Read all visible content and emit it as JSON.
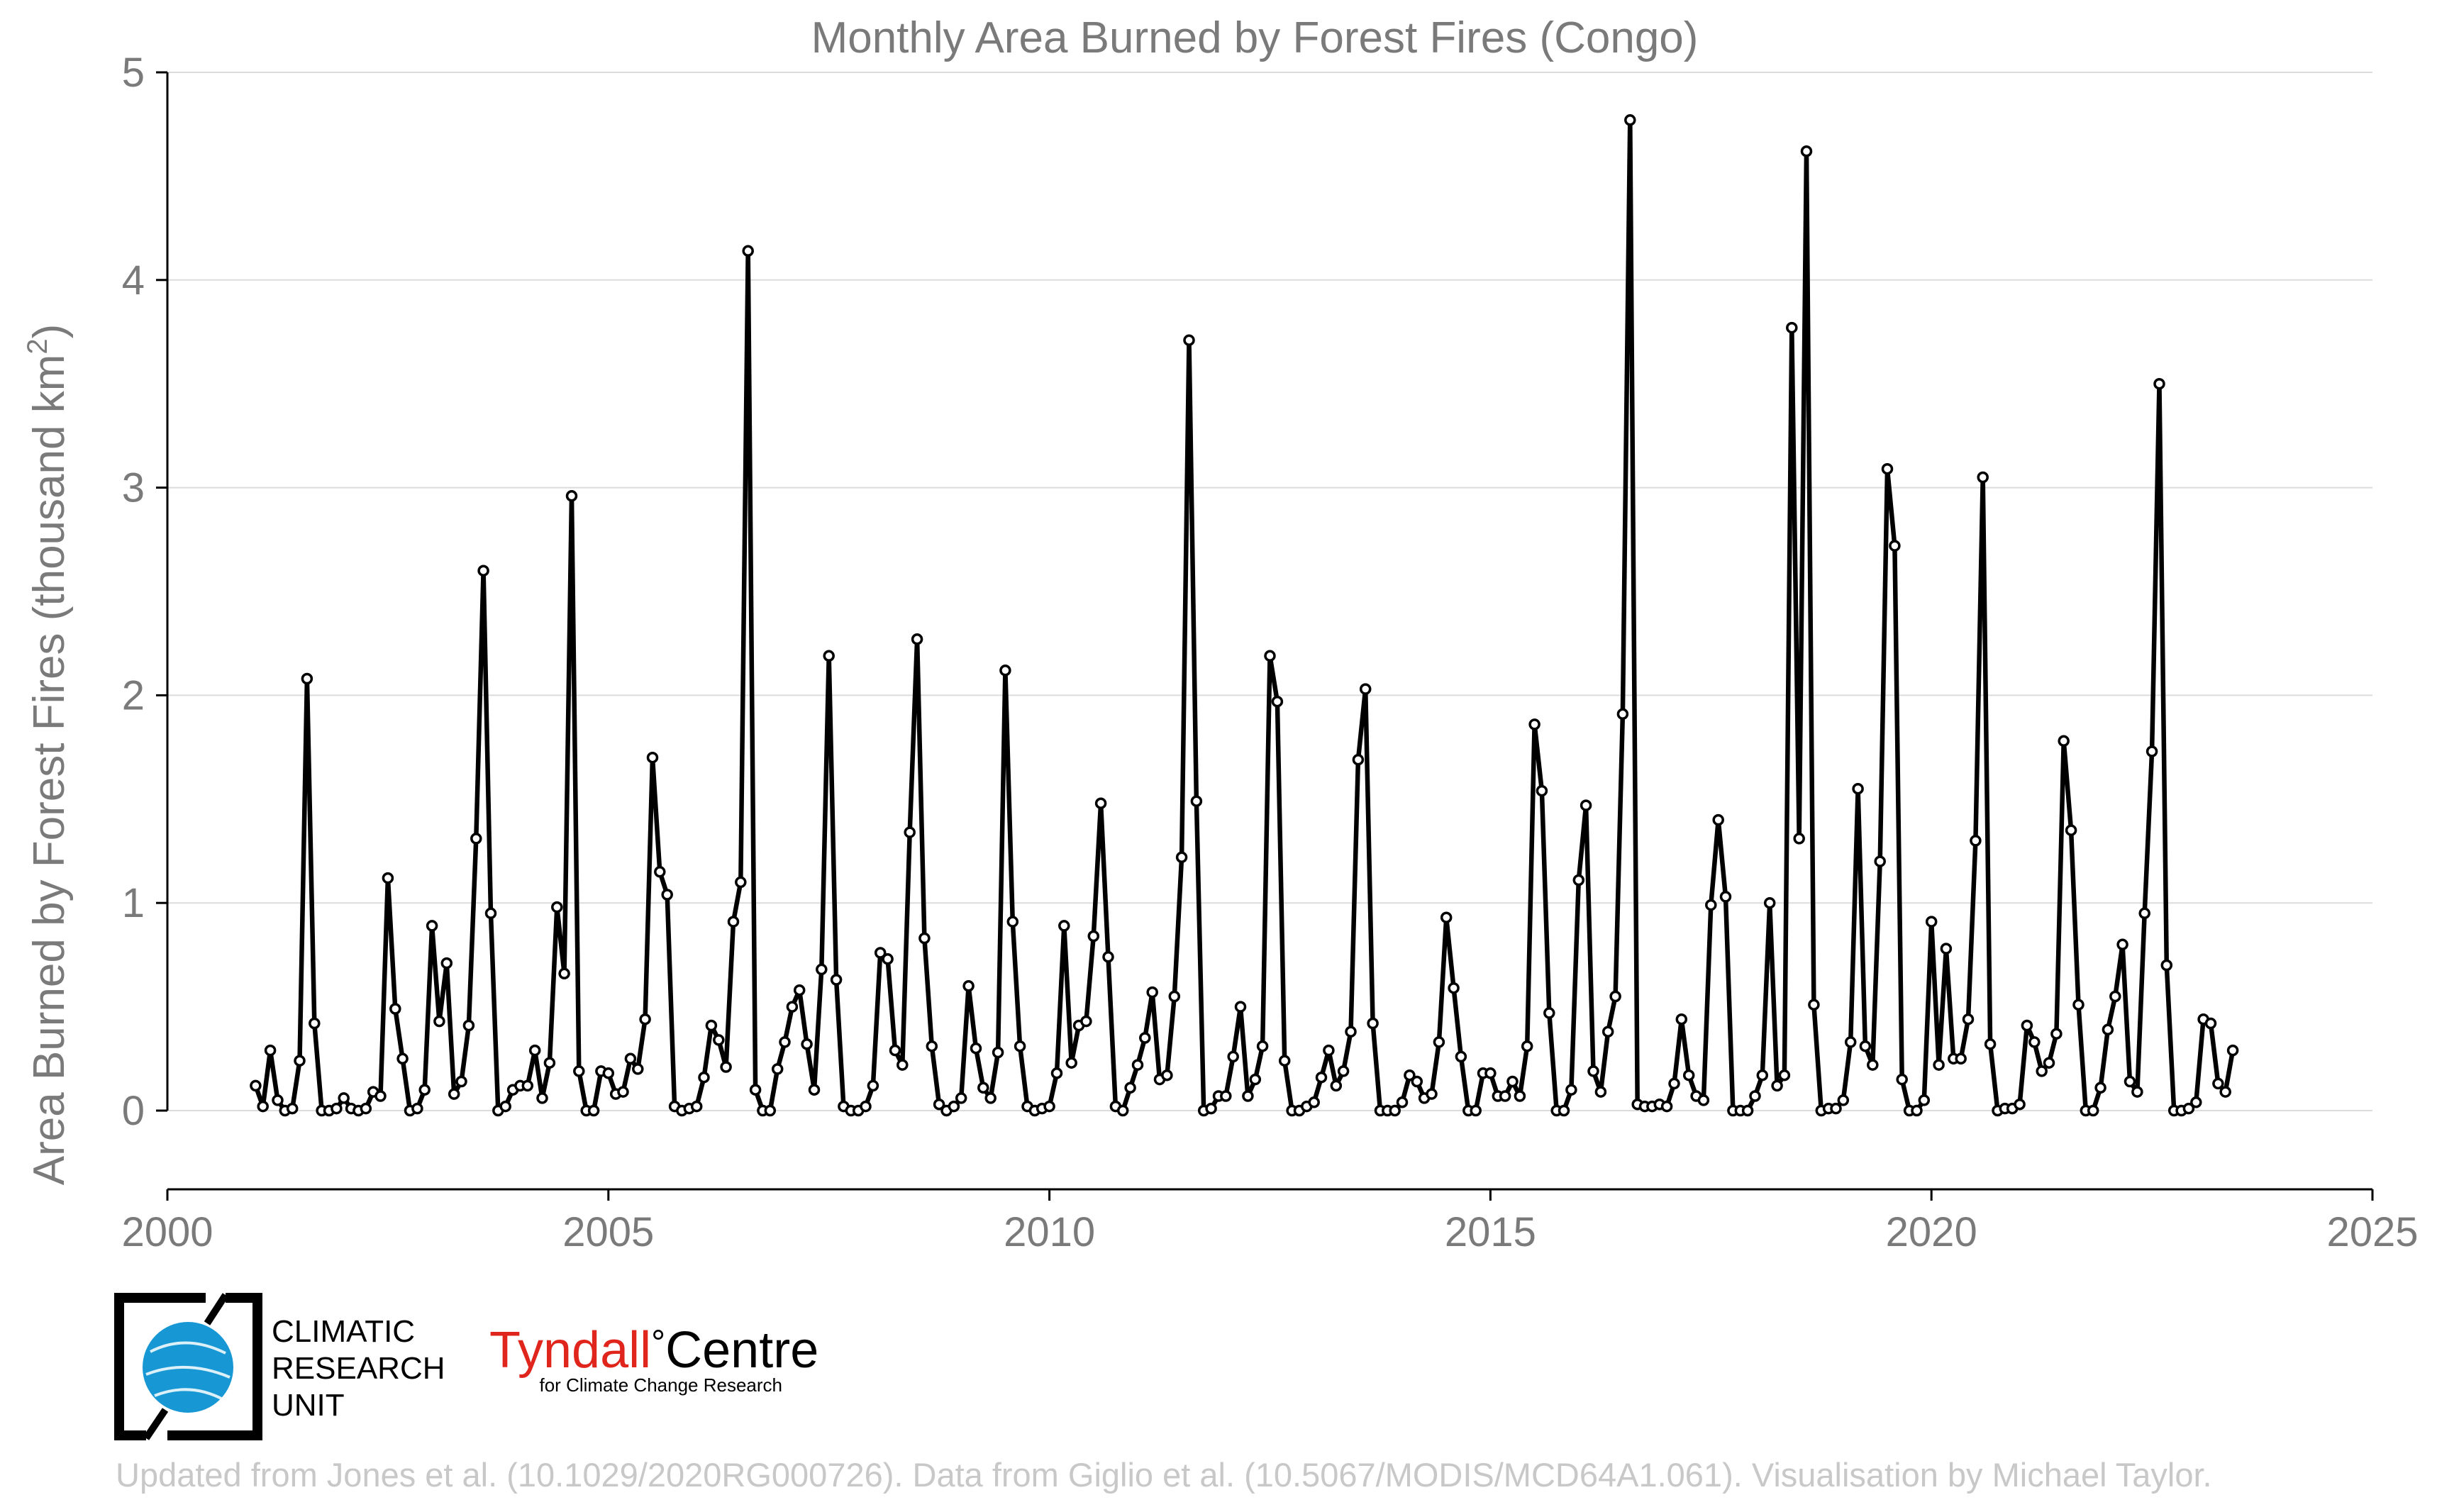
{
  "logos": {
    "cru": {
      "line1": "CLIMATIC",
      "line2": "RESEARCH",
      "line3": "UNIT"
    },
    "tyndall": {
      "word_red": "Tyndall",
      "degree": "°",
      "word_black": "Centre",
      "subtitle": "for Climate Change Research",
      "brand_color": "#e0261c"
    }
  },
  "credit": "Updated from Jones et al. (10.1029/2020RG000726). Data from Giglio et al. (10.5067/MODIS/MCD64A1.061). Visualisation by Michael Taylor.",
  "chart_data": {
    "type": "line",
    "title": "Monthly Area Burned by Forest Fires (Congo)",
    "ylabel_main": "Area Burned by Forest Fires (thousand km",
    "ylabel_sup": "2",
    "ylabel_close": ")",
    "xlabel": "",
    "xlim": [
      2000,
      2025
    ],
    "ylim": [
      0,
      5
    ],
    "xticks": [
      2000,
      2005,
      2010,
      2015,
      2020,
      2025
    ],
    "yticks": [
      0,
      1,
      2,
      3,
      4,
      5
    ],
    "grid": "horizontal",
    "legend": "none",
    "x_start": "2001-01",
    "x_step": "1 month",
    "series": [
      {
        "values": [
          0.12,
          0.02,
          0.29,
          0.05,
          0.0,
          0.01,
          0.24,
          2.08,
          0.42,
          0.0,
          0.0,
          0.01,
          0.06,
          0.01,
          0.0,
          0.01,
          0.09,
          0.07,
          1.12,
          0.49,
          0.25,
          0.0,
          0.01,
          0.1,
          0.89,
          0.43,
          0.71,
          0.08,
          0.14,
          0.41,
          1.31,
          2.6,
          0.95,
          0.0,
          0.02,
          0.1,
          0.12,
          0.12,
          0.29,
          0.06,
          0.23,
          0.98,
          0.66,
          2.96,
          0.19,
          0.0,
          0.0,
          0.19,
          0.18,
          0.08,
          0.09,
          0.25,
          0.2,
          0.44,
          1.7,
          1.15,
          1.04,
          0.02,
          0.0,
          0.01,
          0.02,
          0.16,
          0.41,
          0.34,
          0.21,
          0.91,
          1.1,
          4.14,
          0.1,
          0.0,
          0.0,
          0.2,
          0.33,
          0.5,
          0.58,
          0.32,
          0.1,
          0.68,
          2.19,
          0.63,
          0.02,
          0.0,
          0.0,
          0.02,
          0.12,
          0.76,
          0.73,
          0.29,
          0.22,
          1.34,
          2.27,
          0.83,
          0.31,
          0.03,
          0.0,
          0.02,
          0.06,
          0.6,
          0.3,
          0.11,
          0.06,
          0.28,
          2.12,
          0.91,
          0.31,
          0.02,
          0.0,
          0.01,
          0.02,
          0.18,
          0.89,
          0.23,
          0.41,
          0.43,
          0.84,
          1.48,
          0.74,
          0.02,
          0.0,
          0.11,
          0.22,
          0.35,
          0.57,
          0.15,
          0.17,
          0.55,
          1.22,
          3.71,
          1.49,
          0.0,
          0.01,
          0.07,
          0.07,
          0.26,
          0.5,
          0.07,
          0.15,
          0.31,
          2.19,
          1.97,
          0.24,
          0.0,
          0.0,
          0.02,
          0.04,
          0.16,
          0.29,
          0.12,
          0.19,
          0.38,
          1.69,
          2.03,
          0.42,
          0.0,
          0.0,
          0.0,
          0.04,
          0.17,
          0.14,
          0.06,
          0.08,
          0.33,
          0.93,
          0.59,
          0.26,
          0.0,
          0.0,
          0.18,
          0.18,
          0.07,
          0.07,
          0.14,
          0.07,
          0.31,
          1.86,
          1.54,
          0.47,
          0.0,
          0.0,
          0.1,
          1.11,
          1.47,
          0.19,
          0.09,
          0.38,
          0.55,
          1.91,
          4.77,
          0.03,
          0.02,
          0.02,
          0.03,
          0.02,
          0.13,
          0.44,
          0.17,
          0.07,
          0.05,
          0.99,
          1.4,
          1.03,
          0.0,
          0.0,
          0.0,
          0.07,
          0.17,
          1.0,
          0.12,
          0.17,
          3.77,
          1.31,
          4.62,
          0.51,
          0.0,
          0.01,
          0.01,
          0.05,
          0.33,
          1.55,
          0.31,
          0.22,
          1.2,
          3.09,
          2.72,
          0.15,
          0.0,
          0.0,
          0.05,
          0.91,
          0.22,
          0.78,
          0.25,
          0.25,
          0.44,
          1.3,
          3.05,
          0.32,
          0.0,
          0.01,
          0.01,
          0.03,
          0.41,
          0.33,
          0.19,
          0.23,
          0.37,
          1.78,
          1.35,
          0.51,
          0.0,
          0.0,
          0.11,
          0.39,
          0.55,
          0.8,
          0.14,
          0.09,
          0.95,
          1.73,
          3.5,
          0.7,
          0.0,
          0.0,
          0.01,
          0.04,
          0.44,
          0.42,
          0.13,
          0.09,
          0.29
        ]
      }
    ]
  }
}
